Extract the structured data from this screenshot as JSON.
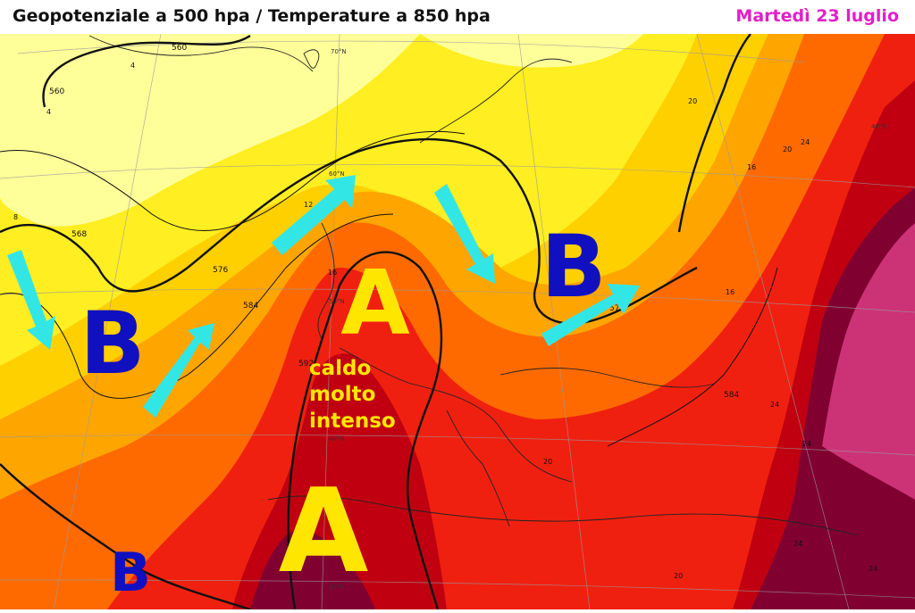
{
  "header": {
    "title": "Geopotenziale a 500 hpa / Temperature a 850 hpa",
    "date": "Martedì 23 luglio"
  },
  "pressure_systems": [
    {
      "type": "B",
      "label": "B",
      "color": "#1010c0"
    },
    {
      "type": "A",
      "label": "A",
      "color": "#ffe600"
    },
    {
      "type": "B",
      "label": "B",
      "color": "#1010c0"
    },
    {
      "type": "A",
      "label": "A",
      "color": "#ffe600"
    },
    {
      "type": "B",
      "label": "B",
      "color": "#1010c0"
    }
  ],
  "annotation": {
    "lines": [
      "caldo",
      "molto",
      "intenso"
    ],
    "color": "#ffe600"
  },
  "contour_labels": [
    "560",
    "560",
    "568",
    "576",
    "584",
    "592",
    "584",
    "576"
  ],
  "latitude_labels": [
    "70°N",
    "60°N",
    "50°N",
    "40°N",
    "30°N",
    "40°N"
  ],
  "isotherm_labels": [
    "4",
    "4",
    "8",
    "12",
    "16",
    "16",
    "16",
    "20",
    "20",
    "24",
    "24",
    "24",
    "24",
    "20",
    "20",
    "24"
  ],
  "colors": {
    "pale_yellow": "#ffff99",
    "yellow": "#ffee22",
    "gold": "#ffd000",
    "orange": "#ffa500",
    "dark_orange": "#ff6a00",
    "red": "#f02010",
    "dark_red": "#c00010",
    "maroon": "#800030",
    "magenta": "#cc3377",
    "arrow": "#33e6e6"
  }
}
